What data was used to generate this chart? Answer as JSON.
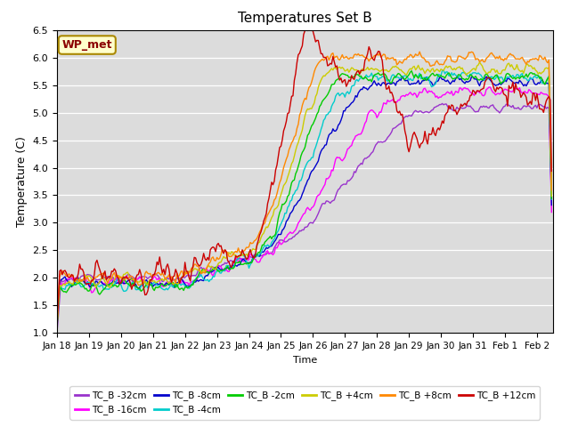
{
  "title": "Temperatures Set B",
  "xlabel": "Time",
  "ylabel": "Temperature (C)",
  "ylim": [
    1.0,
    6.5
  ],
  "xlim": [
    0,
    372
  ],
  "annotation": "WP_met",
  "bg_color": "#dcdcdc",
  "series": [
    {
      "label": "TC_B -32cm",
      "color": "#9933cc"
    },
    {
      "label": "TC_B -16cm",
      "color": "#ff00ff"
    },
    {
      "label": "TC_B -8cm",
      "color": "#0000cc"
    },
    {
      "label": "TC_B -4cm",
      "color": "#00cccc"
    },
    {
      "label": "TC_B -2cm",
      "color": "#00cc00"
    },
    {
      "label": "TC_B +4cm",
      "color": "#cccc00"
    },
    {
      "label": "TC_B +8cm",
      "color": "#ff8800"
    },
    {
      "label": "TC_B +12cm",
      "color": "#cc0000"
    }
  ],
  "xtick_labels": [
    "Jan 18",
    "Jan 19",
    "Jan 20",
    "Jan 21",
    "Jan 22",
    "Jan 23",
    "Jan 24",
    "Jan 25",
    "Jan 26",
    "Jan 27",
    "Jan 28",
    "Jan 29",
    "Jan 30",
    "Jan 31",
    "Feb 1",
    "Feb 2"
  ],
  "xtick_positions": [
    0,
    24,
    48,
    72,
    96,
    120,
    144,
    168,
    192,
    216,
    240,
    264,
    288,
    312,
    336,
    360
  ],
  "ytick_positions": [
    1.0,
    1.5,
    2.0,
    2.5,
    3.0,
    3.5,
    4.0,
    4.5,
    5.0,
    5.5,
    6.0,
    6.5
  ]
}
